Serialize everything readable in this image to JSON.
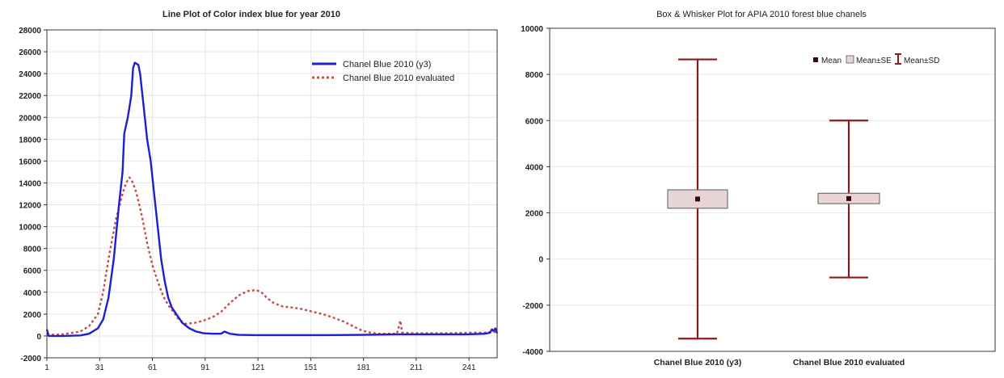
{
  "chart_data": [
    {
      "type": "line",
      "title": "Line Plot of Color index blue for year 2010",
      "xlabel": "",
      "ylabel": "",
      "xlim": [
        1,
        257
      ],
      "ylim": [
        -2000,
        28000
      ],
      "x_ticks": [
        1,
        31,
        61,
        91,
        121,
        151,
        181,
        211,
        241
      ],
      "y_ticks": [
        -2000,
        0,
        2000,
        4000,
        6000,
        8000,
        10000,
        12000,
        14000,
        16000,
        18000,
        20000,
        22000,
        24000,
        26000,
        28000
      ],
      "grid": true,
      "legend_position": "top-right",
      "series": [
        {
          "name": "Chanel Blue 2010 (y3)",
          "color": "#1f1fd0",
          "style": "solid",
          "points": [
            [
              1,
              600
            ],
            [
              2,
              0
            ],
            [
              10,
              0
            ],
            [
              20,
              50
            ],
            [
              25,
              200
            ],
            [
              30,
              700
            ],
            [
              33,
              1500
            ],
            [
              36,
              3500
            ],
            [
              39,
              7000
            ],
            [
              42,
              12000
            ],
            [
              44,
              15000
            ],
            [
              45,
              18500
            ],
            [
              47,
              20000
            ],
            [
              48,
              21000
            ],
            [
              49,
              22000
            ],
            [
              50,
              24500
            ],
            [
              51,
              25000
            ],
            [
              53,
              24800
            ],
            [
              54,
              24000
            ],
            [
              56,
              21000
            ],
            [
              58,
              18000
            ],
            [
              60,
              16000
            ],
            [
              62,
              13000
            ],
            [
              64,
              10000
            ],
            [
              66,
              7000
            ],
            [
              68,
              5000
            ],
            [
              70,
              3500
            ],
            [
              72,
              2600
            ],
            [
              75,
              1900
            ],
            [
              78,
              1200
            ],
            [
              82,
              700
            ],
            [
              86,
              400
            ],
            [
              90,
              250
            ],
            [
              95,
              200
            ],
            [
              100,
              200
            ],
            [
              102,
              400
            ],
            [
              105,
              200
            ],
            [
              110,
              100
            ],
            [
              120,
              80
            ],
            [
              140,
              80
            ],
            [
              160,
              80
            ],
            [
              180,
              100
            ],
            [
              200,
              150
            ],
            [
              220,
              150
            ],
            [
              240,
              150
            ],
            [
              250,
              200
            ],
            [
              253,
              300
            ],
            [
              254,
              600
            ],
            [
              255,
              450
            ],
            [
              256,
              700
            ],
            [
              257,
              250
            ]
          ]
        },
        {
          "name": "Chanel Blue 2010 evaluated",
          "color": "#c0504d",
          "style": "dotted",
          "points": [
            [
              1,
              100
            ],
            [
              10,
              150
            ],
            [
              20,
              400
            ],
            [
              25,
              900
            ],
            [
              30,
              2000
            ],
            [
              33,
              4000
            ],
            [
              36,
              7000
            ],
            [
              40,
              10500
            ],
            [
              44,
              13000
            ],
            [
              46,
              14000
            ],
            [
              48,
              14500
            ],
            [
              50,
              14000
            ],
            [
              52,
              13000
            ],
            [
              55,
              11000
            ],
            [
              58,
              8500
            ],
            [
              61,
              6500
            ],
            [
              64,
              5000
            ],
            [
              67,
              3700
            ],
            [
              70,
              2800
            ],
            [
              73,
              2200
            ],
            [
              76,
              1500
            ],
            [
              80,
              1100
            ],
            [
              85,
              1200
            ],
            [
              90,
              1400
            ],
            [
              95,
              1700
            ],
            [
              100,
              2200
            ],
            [
              105,
              3000
            ],
            [
              110,
              3700
            ],
            [
              115,
              4100
            ],
            [
              120,
              4200
            ],
            [
              123,
              4000
            ],
            [
              126,
              3500
            ],
            [
              130,
              3000
            ],
            [
              135,
              2700
            ],
            [
              140,
              2600
            ],
            [
              145,
              2500
            ],
            [
              150,
              2300
            ],
            [
              155,
              2100
            ],
            [
              160,
              1900
            ],
            [
              165,
              1600
            ],
            [
              170,
              1300
            ],
            [
              175,
              900
            ],
            [
              180,
              500
            ],
            [
              185,
              300
            ],
            [
              190,
              200
            ],
            [
              195,
              200
            ],
            [
              200,
              200
            ],
            [
              201,
              800
            ],
            [
              202,
              1400
            ],
            [
              203,
              300
            ],
            [
              210,
              250
            ],
            [
              220,
              250
            ],
            [
              230,
              250
            ],
            [
              240,
              300
            ],
            [
              250,
              300
            ],
            [
              255,
              400
            ],
            [
              257,
              300
            ]
          ]
        }
      ]
    },
    {
      "type": "box",
      "title": "Box & Whisker Plot for APIA 2010 forest blue chanels",
      "xlabel": "",
      "ylabel": "",
      "ylim": [
        -4000,
        10000
      ],
      "y_ticks": [
        -4000,
        -2000,
        0,
        2000,
        4000,
        6000,
        8000,
        10000
      ],
      "grid": true,
      "legend_position": "top-right",
      "legend": [
        {
          "label": "Mean",
          "symbol": "square-marker"
        },
        {
          "label": "Mean±SE",
          "symbol": "box"
        },
        {
          "label": "Mean±SD",
          "symbol": "whisker"
        }
      ],
      "colors": {
        "marker": "#3a0a0a",
        "whisker": "#8b1a1a",
        "box_fill": "#e8d6d6",
        "box_stroke": "#5a5a5a"
      },
      "categories": [
        "Chanel Blue 2010 (y3)",
        "Chanel Blue 2010 evaluated"
      ],
      "boxes": [
        {
          "category": "Chanel Blue 2010 (y3)",
          "mean": 2600,
          "se_low": 2200,
          "se_high": 3000,
          "sd_low": -3450,
          "sd_high": 8650
        },
        {
          "category": "Chanel Blue 2010 evaluated",
          "mean": 2620,
          "se_low": 2400,
          "se_high": 2850,
          "sd_low": -800,
          "sd_high": 6000
        }
      ]
    }
  ]
}
